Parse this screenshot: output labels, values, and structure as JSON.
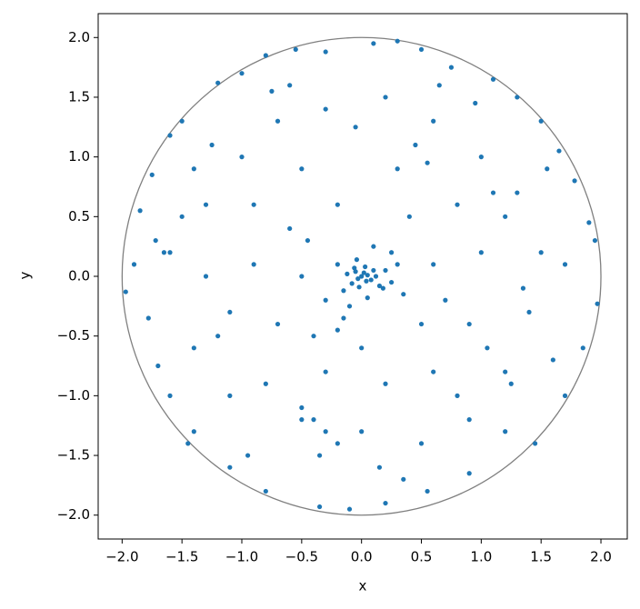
{
  "chart_data": {
    "type": "scatter",
    "x_label": "x",
    "y_label": "y",
    "x": [
      0,
      0.02,
      -0.03,
      0.05,
      -0.05,
      0.08,
      0.1,
      -0.08,
      0.03,
      -0.02,
      0.12,
      -0.12,
      0.15,
      0.2,
      -0.15,
      0.25,
      0.3,
      -0.2,
      0.05,
      -0.1,
      -0.15,
      -0.2,
      0.1,
      0.25,
      0.35,
      -0.3,
      0.04,
      -0.06,
      0.18,
      -0.04,
      -1.97,
      -1.9,
      -1.85,
      -1.75,
      -1.78,
      -1.7,
      -1.6,
      -1.5,
      -1.6,
      -1.45,
      -1.2,
      -1.0,
      -0.8,
      -0.55,
      -0.3,
      0.1,
      0.3,
      0.5,
      0.75,
      1.1,
      1.3,
      1.5,
      1.65,
      1.78,
      1.9,
      1.95,
      1.97,
      1.85,
      1.7,
      1.45,
      1.2,
      0.9,
      0.55,
      0.2,
      -0.1,
      -0.35,
      -0.8,
      -1.1,
      -1.4,
      -1.72,
      -1.5,
      -1.3,
      -1.2,
      -1.0,
      -0.7,
      -0.3,
      0.2,
      0.6,
      1.0,
      1.3,
      1.5,
      1.4,
      1.2,
      0.9,
      0.5,
      0,
      -0.5,
      -0.8,
      -1.1,
      -1.4,
      -1.6,
      -1.4,
      -0.9,
      -0.5,
      0.3,
      0.8,
      1.0,
      0.9,
      0.6,
      0.2,
      -0.3,
      -0.7,
      -0.9,
      -0.6,
      -0.2,
      0.4,
      0.6,
      0.5,
      0,
      -0.4,
      -0.5,
      -0.4,
      -0.3,
      -0.5,
      -0.2,
      -0.35,
      1.1,
      1.2,
      1.35,
      0.7,
      0.45,
      -1.1,
      -1.3,
      -0.95,
      1.55,
      1.6,
      -0.6,
      0.8,
      0.95,
      -1.65,
      1.7,
      0.15,
      -0.75,
      0.65,
      1.25,
      -1.25,
      0.35,
      -0.05,
      1.05,
      -0.45,
      0.55
    ],
    "values": [
      0,
      0.03,
      -0.02,
      0.01,
      0.04,
      -0.03,
      0.05,
      -0.06,
      0.08,
      -0.09,
      0,
      0.02,
      -0.08,
      0.05,
      -0.12,
      -0.05,
      0.1,
      0.1,
      -0.18,
      -0.25,
      -0.35,
      -0.45,
      0.25,
      0.2,
      -0.15,
      -0.2,
      -0.04,
      0.07,
      -0.1,
      0.14,
      -0.13,
      0.1,
      0.55,
      0.85,
      -0.35,
      -0.75,
      1.18,
      1.3,
      -1.0,
      -1.4,
      1.62,
      1.7,
      1.85,
      1.9,
      1.88,
      1.95,
      1.97,
      1.9,
      1.75,
      1.65,
      1.5,
      1.3,
      1.05,
      0.8,
      0.45,
      0.3,
      -0.23,
      -0.6,
      -1.0,
      -1.4,
      -1.3,
      -1.65,
      -1.8,
      -1.9,
      -1.95,
      -1.93,
      -1.8,
      -1.6,
      -1.3,
      0.3,
      0.5,
      0,
      -0.5,
      1.0,
      1.3,
      1.4,
      1.5,
      1.3,
      1.0,
      0.7,
      0.2,
      -0.3,
      -0.8,
      -1.2,
      -1.4,
      -1.3,
      -1.2,
      -0.9,
      -1.0,
      -0.6,
      0.2,
      0.9,
      0.6,
      0.9,
      0.9,
      0.6,
      0.2,
      -0.4,
      -0.8,
      -0.9,
      -0.8,
      -0.4,
      0.1,
      0.4,
      0.6,
      0.5,
      0.1,
      -0.4,
      -0.6,
      -0.5,
      0,
      -1.2,
      -1.3,
      -1.1,
      -1.4,
      -1.5,
      0.7,
      0.5,
      -0.1,
      -0.2,
      1.1,
      -0.3,
      0.6,
      -1.5,
      0.9,
      -0.7,
      1.6,
      -1.0,
      1.45,
      0.2,
      0.1,
      -1.6,
      1.55,
      1.6,
      -0.9,
      1.1,
      -1.7,
      1.25,
      -0.6,
      0.3,
      0.95
    ],
    "color": "#1f77b4",
    "circle": {
      "radius": 2,
      "color": "gray"
    },
    "xlim": [
      -2.2,
      2.22
    ],
    "ylim": [
      -2.2,
      2.2
    ],
    "xticks": [
      {
        "value": -2,
        "label": "−2.0"
      },
      {
        "value": -1.5,
        "label": "−1.5"
      },
      {
        "value": -1,
        "label": "−1.0"
      },
      {
        "value": -0.5,
        "label": "−0.5"
      },
      {
        "value": 0,
        "label": "0.0"
      },
      {
        "value": 0.5,
        "label": "0.5"
      },
      {
        "value": 1,
        "label": "1.0"
      },
      {
        "value": 1.5,
        "label": "1.5"
      },
      {
        "value": 2,
        "label": "2.0"
      }
    ],
    "yticks": [
      {
        "value": -2,
        "label": "−2.0"
      },
      {
        "value": -1.5,
        "label": "−1.5"
      },
      {
        "value": -1,
        "label": "−1.0"
      },
      {
        "value": -0.5,
        "label": "−0.5"
      },
      {
        "value": 0,
        "label": "0.0"
      },
      {
        "value": 0.5,
        "label": "0.5"
      },
      {
        "value": 1,
        "label": "1.0"
      },
      {
        "value": 1.5,
        "label": "1.5"
      },
      {
        "value": 2,
        "label": "2.0"
      }
    ]
  }
}
